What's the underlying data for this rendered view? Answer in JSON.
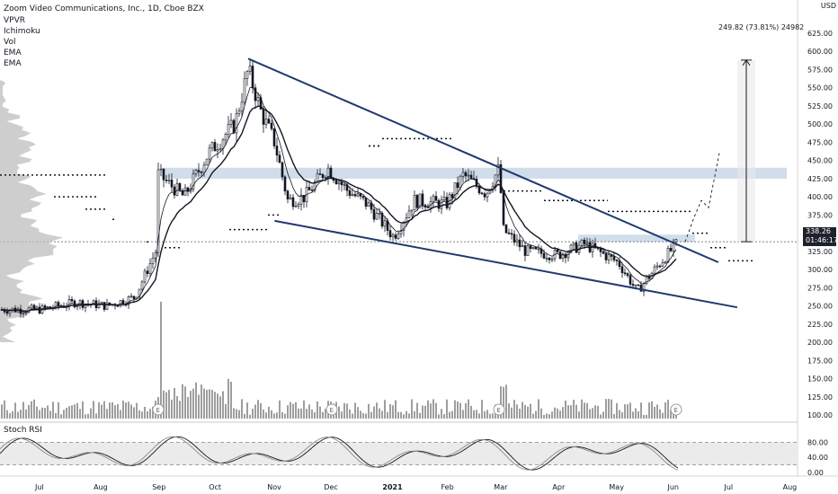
{
  "header": {
    "symbol_title": "Zoom Video Communications, Inc., 1D, Cboe BZX",
    "indicators": [
      "VPVR",
      "Ichimoku",
      "Vol",
      "EMA",
      "EMA"
    ],
    "currency_badge": "USD"
  },
  "price_tag": {
    "value": "338.26",
    "countdown": "01:46:17"
  },
  "measure_label": "249.82 (73.81%) 24982",
  "earnings_marker": "E",
  "rsi": {
    "title": "Stoch RSI",
    "ticks": [
      "80.00",
      "40.00",
      "0.00"
    ],
    "levels": [
      80,
      20
    ]
  },
  "colors": {
    "candle": "#131722",
    "trendline": "#1f3a6e",
    "zone": "#b2c7de",
    "volume": "#9e9e9e",
    "ema_fast": "#131722",
    "ema_slow": "#131722",
    "rsi_band": "#ebebeb",
    "price_tag_bg": "#1e222d"
  },
  "chart_data": {
    "type": "candlestick",
    "title": "Zoom Video Communications, Inc., 1D, Cboe BZX",
    "y_axis_ticks": [
      625,
      600,
      575,
      550,
      525,
      500,
      475,
      450,
      425,
      400,
      375,
      350,
      325,
      300,
      275,
      250,
      225,
      200,
      175,
      150,
      125,
      100
    ],
    "ylim": [
      100,
      630
    ],
    "x_tick_labels": [
      "Jul",
      "Aug",
      "Sep",
      "Oct",
      "Nov",
      "Dec",
      "2021",
      "Feb",
      "Mar",
      "Apr",
      "May",
      "Jun",
      "Jul",
      "Aug"
    ],
    "last_price": 338.26,
    "price_path": [
      [
        "2020-07-01",
        245
      ],
      [
        "2020-07-20",
        255
      ],
      [
        "2020-08-05",
        250
      ],
      [
        "2020-08-20",
        262
      ],
      [
        "2020-08-31",
        325
      ],
      [
        "2020-09-01",
        432
      ],
      [
        "2020-09-15",
        400
      ],
      [
        "2020-09-28",
        460
      ],
      [
        "2020-10-05",
        480
      ],
      [
        "2020-10-12",
        500
      ],
      [
        "2020-10-19",
        575
      ],
      [
        "2020-10-26",
        515
      ],
      [
        "2020-11-02",
        475
      ],
      [
        "2020-11-09",
        395
      ],
      [
        "2020-11-18",
        400
      ],
      [
        "2020-11-30",
        440
      ],
      [
        "2020-12-10",
        410
      ],
      [
        "2020-12-21",
        390
      ],
      [
        "2021-01-04",
        345
      ],
      [
        "2021-01-15",
        395
      ],
      [
        "2021-02-01",
        390
      ],
      [
        "2021-02-10",
        430
      ],
      [
        "2021-02-22",
        405
      ],
      [
        "2021-03-01",
        440
      ],
      [
        "2021-03-03",
        355
      ],
      [
        "2021-03-15",
        325
      ],
      [
        "2021-04-01",
        320
      ],
      [
        "2021-04-15",
        335
      ],
      [
        "2021-05-03",
        310
      ],
      [
        "2021-05-13",
        270
      ],
      [
        "2021-05-27",
        315
      ],
      [
        "2021-06-04",
        338.26
      ]
    ],
    "stoch_rsi_levels": [
      80,
      20
    ],
    "annotations": {
      "falling_wedge_upper": {
        "from": [
          "2020-10-19",
          590
        ],
        "to": [
          "2021-06-25",
          310
        ]
      },
      "falling_wedge_lower": {
        "from": [
          "2020-11-02",
          367
        ],
        "to": [
          "2021-07-05",
          248
        ]
      },
      "resistance_zone_1": [
        425,
        440
      ],
      "resistance_zone_2": [
        338,
        348
      ],
      "measured_move": {
        "low": 338.26,
        "high": 588.08,
        "label": "249.82 (73.81%) 24982"
      }
    }
  }
}
